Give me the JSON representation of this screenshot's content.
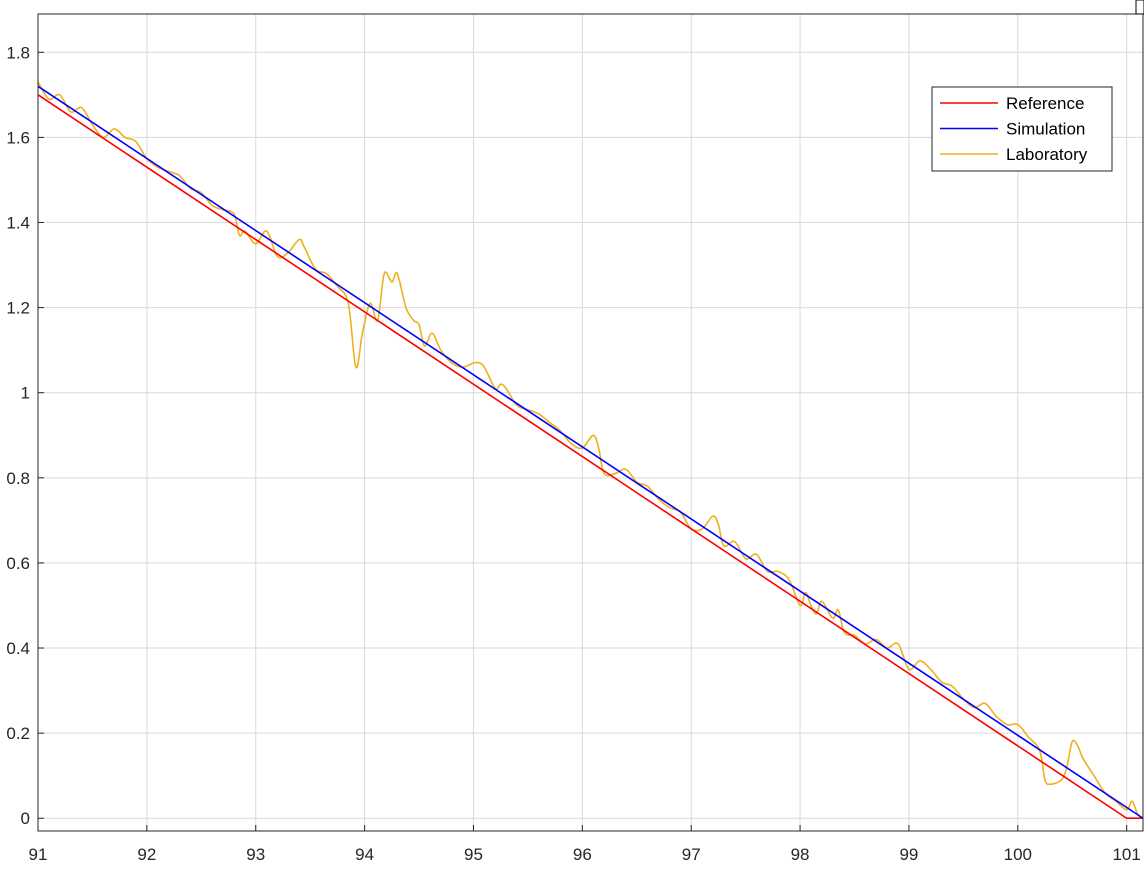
{
  "chart_data": {
    "type": "line",
    "title": "",
    "xlabel": "",
    "ylabel": "",
    "xlim": [
      91,
      101.15
    ],
    "ylim": [
      -0.03,
      1.89
    ],
    "x_ticks": [
      "91",
      "92",
      "93",
      "94",
      "95",
      "96",
      "97",
      "98",
      "99",
      "100",
      "101"
    ],
    "y_ticks": [
      "0",
      "0.2",
      "0.4",
      "0.6",
      "0.8",
      "1",
      "1.2",
      "1.4",
      "1.6",
      "1.8"
    ],
    "grid": true,
    "legend_position": "top-right",
    "series": [
      {
        "name": "Reference",
        "color": "#ff0000",
        "x": [
          91,
          101.0,
          101.15
        ],
        "y": [
          1.7,
          0.0,
          0.0
        ]
      },
      {
        "name": "Simulation",
        "color": "#0000ff",
        "x": [
          91,
          101.15
        ],
        "y": [
          1.72,
          0.0
        ]
      },
      {
        "name": "Laboratory",
        "color": "#edb120",
        "x": [
          91.0,
          91.1,
          91.2,
          91.3,
          91.4,
          91.5,
          91.6,
          91.7,
          91.8,
          91.9,
          92.0,
          92.1,
          92.2,
          92.3,
          92.4,
          92.5,
          92.6,
          92.7,
          92.8,
          92.85,
          92.9,
          93.0,
          93.1,
          93.2,
          93.3,
          93.4,
          93.45,
          93.55,
          93.65,
          93.75,
          93.85,
          93.92,
          93.98,
          94.05,
          94.12,
          94.18,
          94.25,
          94.3,
          94.38,
          94.45,
          94.5,
          94.55,
          94.62,
          94.7,
          94.8,
          94.9,
          95.0,
          95.05,
          95.1,
          95.2,
          95.25,
          95.3,
          95.4,
          95.5,
          95.6,
          95.7,
          95.8,
          95.9,
          96.0,
          96.1,
          96.15,
          96.2,
          96.3,
          96.4,
          96.5,
          96.6,
          96.7,
          96.8,
          96.9,
          97.0,
          97.1,
          97.2,
          97.25,
          97.3,
          97.4,
          97.5,
          97.6,
          97.7,
          97.8,
          97.9,
          98.0,
          98.05,
          98.1,
          98.15,
          98.2,
          98.3,
          98.35,
          98.4,
          98.45,
          98.5,
          98.6,
          98.7,
          98.8,
          98.9,
          99.0,
          99.1,
          99.2,
          99.3,
          99.4,
          99.5,
          99.6,
          99.7,
          99.8,
          99.9,
          100.0,
          100.1,
          100.2,
          100.25,
          100.3,
          100.4,
          100.45,
          100.5,
          100.55,
          100.6,
          100.7,
          100.8,
          100.9,
          101.0,
          101.05,
          101.1,
          101.15
        ],
        "y": [
          1.73,
          1.69,
          1.7,
          1.66,
          1.67,
          1.63,
          1.6,
          1.62,
          1.6,
          1.59,
          1.55,
          1.53,
          1.52,
          1.51,
          1.48,
          1.47,
          1.44,
          1.43,
          1.42,
          1.37,
          1.38,
          1.35,
          1.38,
          1.32,
          1.33,
          1.36,
          1.34,
          1.29,
          1.28,
          1.25,
          1.21,
          1.06,
          1.14,
          1.21,
          1.17,
          1.28,
          1.26,
          1.28,
          1.2,
          1.17,
          1.16,
          1.11,
          1.14,
          1.1,
          1.07,
          1.06,
          1.07,
          1.07,
          1.06,
          1.01,
          1.02,
          1.01,
          0.97,
          0.96,
          0.95,
          0.93,
          0.91,
          0.88,
          0.87,
          0.9,
          0.87,
          0.81,
          0.81,
          0.82,
          0.79,
          0.78,
          0.75,
          0.73,
          0.72,
          0.68,
          0.68,
          0.71,
          0.69,
          0.64,
          0.65,
          0.61,
          0.62,
          0.58,
          0.58,
          0.56,
          0.5,
          0.53,
          0.5,
          0.48,
          0.51,
          0.47,
          0.49,
          0.44,
          0.43,
          0.43,
          0.41,
          0.42,
          0.4,
          0.41,
          0.35,
          0.37,
          0.35,
          0.32,
          0.31,
          0.28,
          0.26,
          0.27,
          0.24,
          0.22,
          0.22,
          0.19,
          0.16,
          0.09,
          0.08,
          0.09,
          0.12,
          0.18,
          0.17,
          0.14,
          0.1,
          0.06,
          0.04,
          0.02,
          0.04,
          0.01,
          0.0
        ]
      }
    ]
  }
}
